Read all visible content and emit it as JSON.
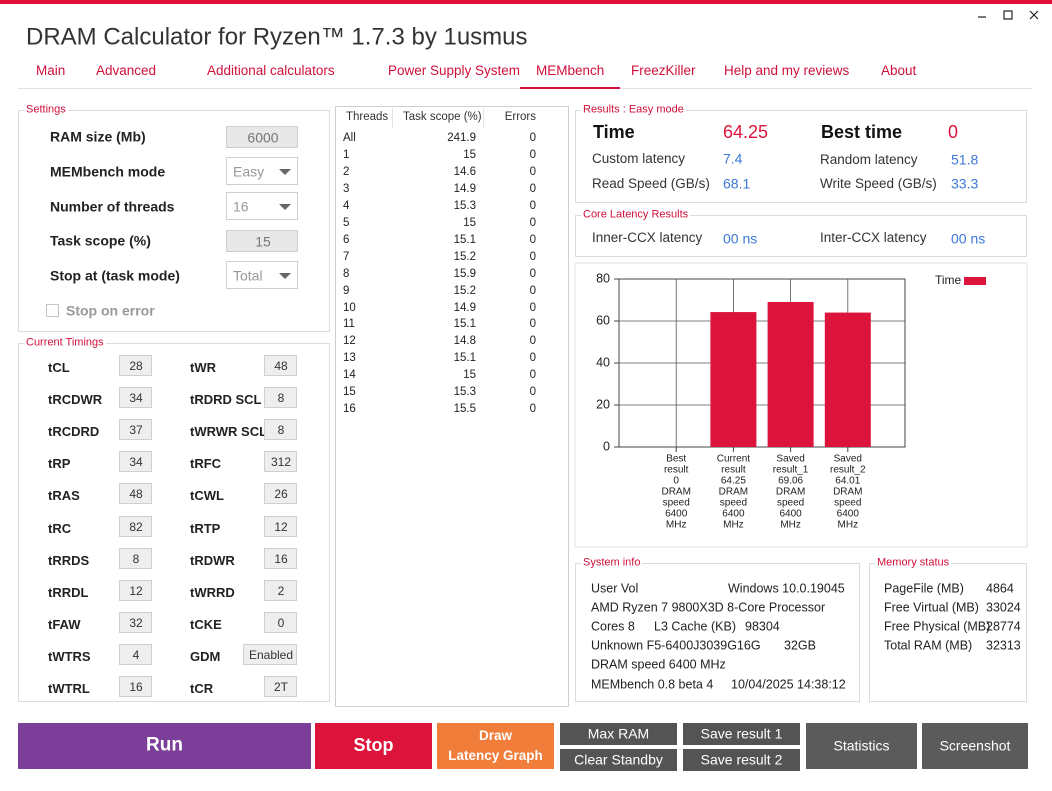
{
  "window": {
    "title": "DRAM Calculator for Ryzen™ 1.7.3 by 1usmus"
  },
  "tabs": [
    "Main",
    "Advanced",
    "Additional calculators",
    "Power Supply System",
    "MEMbench",
    "FreezKiller",
    "Help and my reviews",
    "About"
  ],
  "active_tab": "MEMbench",
  "settings": {
    "title": "Settings",
    "fields": [
      {
        "label": "RAM size (Mb)",
        "value": "6000"
      },
      {
        "label": "MEMbench mode",
        "value": "Easy"
      },
      {
        "label": "Number of threads",
        "value": "16"
      },
      {
        "label": "Task scope (%)",
        "value": "15"
      },
      {
        "label": "Stop at (task mode)",
        "value": "Total"
      }
    ],
    "stop_on_error": "Stop on error"
  },
  "timings": {
    "title": "Current Timings",
    "rows": [
      [
        "tCL",
        "28",
        "tWR",
        "48"
      ],
      [
        "tRCDWR",
        "34",
        "tRDRD SCL",
        "8"
      ],
      [
        "tRCDRD",
        "37",
        "tWRWR SCL",
        "8"
      ],
      [
        "tRP",
        "34",
        "tRFC",
        "312"
      ],
      [
        "tRAS",
        "48",
        "tCWL",
        "26"
      ],
      [
        "tRC",
        "82",
        "tRTP",
        "12"
      ],
      [
        "tRRDS",
        "8",
        "tRDWR",
        "16"
      ],
      [
        "tRRDL",
        "12",
        "tWRRD",
        "2"
      ],
      [
        "tFAW",
        "32",
        "tCKE",
        "0"
      ],
      [
        "tWTRS",
        "4",
        "GDM",
        "Enabled"
      ],
      [
        "tWTRL",
        "16",
        "tCR",
        "2T"
      ]
    ]
  },
  "threads_table": {
    "headers": [
      "Threads",
      "Task scope (%)",
      "Errors"
    ],
    "rows": [
      [
        "All",
        "241.9",
        "0"
      ],
      [
        "1",
        "15",
        "0"
      ],
      [
        "2",
        "14.6",
        "0"
      ],
      [
        "3",
        "14.9",
        "0"
      ],
      [
        "4",
        "15.3",
        "0"
      ],
      [
        "5",
        "15",
        "0"
      ],
      [
        "6",
        "15.1",
        "0"
      ],
      [
        "7",
        "15.2",
        "0"
      ],
      [
        "8",
        "15.9",
        "0"
      ],
      [
        "9",
        "15.2",
        "0"
      ],
      [
        "10",
        "14.9",
        "0"
      ],
      [
        "11",
        "15.1",
        "0"
      ],
      [
        "12",
        "14.8",
        "0"
      ],
      [
        "13",
        "15.1",
        "0"
      ],
      [
        "14",
        "15",
        "0"
      ],
      [
        "15",
        "15.3",
        "0"
      ],
      [
        "16",
        "15.5",
        "0"
      ]
    ]
  },
  "results": {
    "title": "Results : Easy mode",
    "items": [
      {
        "label": "Time",
        "value": "64.25"
      },
      {
        "label": "Best time",
        "value": "0"
      },
      {
        "label": "Custom latency",
        "value": "7.4"
      },
      {
        "label": "Random latency",
        "value": "51.8"
      },
      {
        "label": "Read Speed (GB/s)",
        "value": "68.1"
      },
      {
        "label": "Write Speed (GB/s)",
        "value": "33.3"
      }
    ]
  },
  "core_latency": {
    "title": "Core Latency Results",
    "items": [
      {
        "label": "Inner-CCX latency",
        "value": "00 ns"
      },
      {
        "label": "Inter-CCX latency",
        "value": "00 ns"
      }
    ]
  },
  "chart_data": {
    "type": "bar",
    "categories": [
      [
        "Best",
        "result",
        "0",
        "DRAM",
        "speed",
        "6400",
        "MHz"
      ],
      [
        "Current",
        "result",
        "64.25",
        "DRAM",
        "speed",
        "6400",
        "MHz"
      ],
      [
        "Saved",
        "result_1",
        "69.06",
        "DRAM",
        "speed",
        "6400",
        "MHz"
      ],
      [
        "Saved",
        "result_2",
        "64.01",
        "DRAM",
        "speed",
        "6400",
        "MHz"
      ]
    ],
    "series": [
      {
        "name": "Time",
        "color": "#dc143c",
        "values": [
          0,
          64.25,
          69.06,
          64.01
        ]
      }
    ],
    "ylim": [
      0,
      80
    ],
    "yticks": [
      0,
      20,
      40,
      60,
      80
    ],
    "grid": true,
    "legend": "right"
  },
  "system_info": {
    "title": "System info",
    "lines": [
      [
        "User Vol",
        "Windows 10.0.19045"
      ],
      [
        "AMD Ryzen 7 9800X3D 8-Core Processor"
      ],
      [
        "Cores 8",
        "L3 Cache (KB)",
        "98304"
      ],
      [
        "Unknown F5-6400J3039G16G",
        "32GB"
      ],
      [
        "DRAM speed 6400 MHz"
      ],
      [
        "MEMbench 0.8 beta 4",
        "10/04/2025 14:38:12"
      ]
    ]
  },
  "memory_status": {
    "title": "Memory status",
    "rows": [
      [
        "PageFile (MB)",
        "4864"
      ],
      [
        "Free Virtual (MB)",
        "33024"
      ],
      [
        "Free Physical (MB)",
        "28774"
      ],
      [
        "Total RAM (MB)",
        "32313"
      ]
    ]
  },
  "buttons": [
    "Run",
    "Stop",
    [
      "Draw",
      "Latency Graph"
    ],
    "Max RAM",
    "Clear Standby",
    "Save result 1",
    "Save result 2",
    "Statistics",
    "Screenshot"
  ]
}
